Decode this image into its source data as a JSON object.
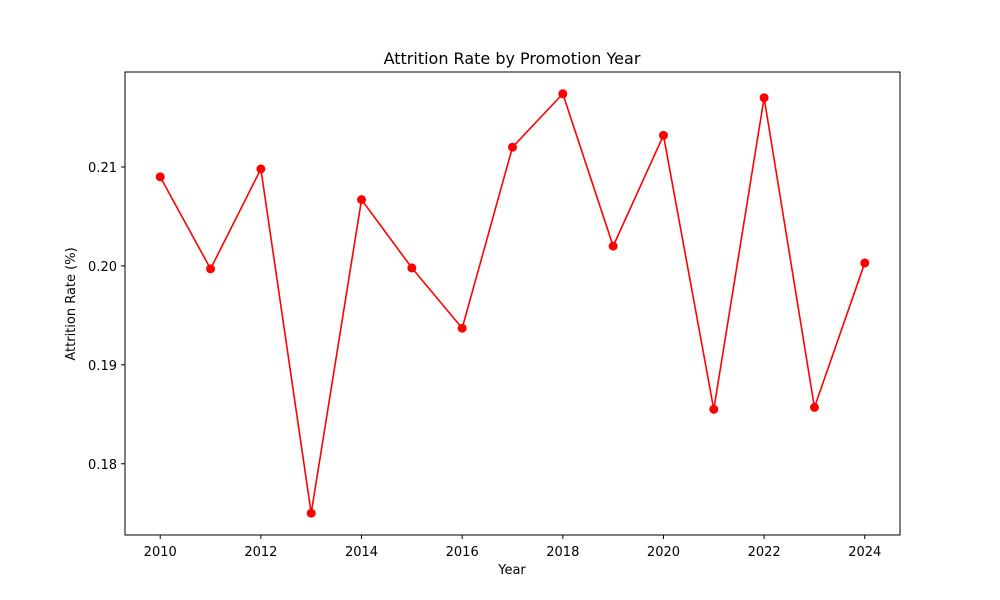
{
  "chart_data": {
    "type": "line",
    "title": "Attrition Rate by Promotion Year",
    "xlabel": "Year",
    "ylabel": "Attrition Rate (%)",
    "x": [
      2010,
      2011,
      2012,
      2013,
      2014,
      2015,
      2016,
      2017,
      2018,
      2019,
      2020,
      2021,
      2022,
      2023,
      2024
    ],
    "series": [
      {
        "values": [
          0.209,
          0.1997,
          0.2098,
          0.175,
          0.2067,
          0.1998,
          0.1937,
          0.212,
          0.2174,
          0.202,
          0.2132,
          0.1855,
          0.217,
          0.1857,
          0.2003
        ],
        "color": "#ff0000",
        "marker": "circle"
      }
    ],
    "xticks": [
      "2010",
      "2012",
      "2014",
      "2016",
      "2018",
      "2020",
      "2022",
      "2024"
    ],
    "yticks": [
      "0.18",
      "0.19",
      "0.20",
      "0.21"
    ],
    "xlim": [
      2009.3,
      2024.7
    ],
    "ylim": [
      0.1728,
      0.2196
    ],
    "grid": false,
    "legend": "none"
  }
}
